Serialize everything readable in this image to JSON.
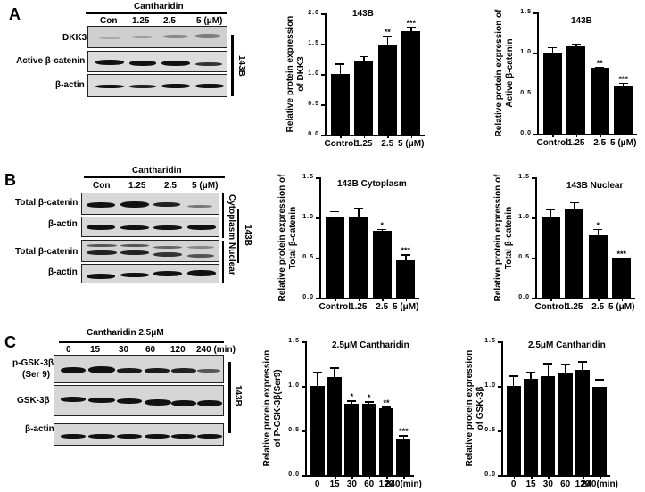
{
  "panels": {
    "A": {
      "letter": "A",
      "blot": {
        "treatment": "Cantharidin",
        "lanes": [
          "Con",
          "1.25",
          "2.5",
          "5 (μM)"
        ],
        "rows": [
          "DKK3",
          "Active  β-catenin",
          "β-actin"
        ],
        "cell_line": "143B"
      }
    },
    "B": {
      "letter": "B",
      "blot": {
        "treatment": "Cantharidin",
        "lanes": [
          "Con",
          "1.25",
          "2.5",
          "5 (μM)"
        ],
        "rows": [
          "Total  β-catenin",
          "β-actin",
          "Total  β-catenin",
          "β-actin"
        ],
        "fractions": [
          "Cytoplasm",
          "Nuclear"
        ],
        "cell_line": "143B"
      }
    },
    "C": {
      "letter": "C",
      "blot": {
        "treatment": "Cantharidin  2.5μM",
        "lanes": [
          "0",
          "15",
          "30",
          "60",
          "120",
          "240 (min)"
        ],
        "rows": [
          "p-GSK-3β\n(Ser 9)",
          "GSK-3β",
          "β-actin"
        ],
        "row_line1": "p-GSK-3β",
        "row_line2": "(Ser 9)",
        "cell_line": "143B"
      }
    }
  },
  "chart_data": [
    {
      "id": "A-DKK3",
      "type": "bar",
      "title": "143B",
      "ylabel": "Relative protein expression\nof DKK3",
      "ylabel_line1": "Relative protein expression",
      "ylabel_line2": "of DKK3",
      "xlabel": "",
      "categories": [
        "Control",
        "1.25",
        "2.5",
        "5 (μM)"
      ],
      "values": [
        1.0,
        1.2,
        1.48,
        1.7
      ],
      "errors": [
        0.17,
        0.1,
        0.15,
        0.08
      ],
      "significance": [
        "",
        "",
        "**",
        "***"
      ],
      "ylim": [
        0,
        2.0
      ],
      "yticks": [
        "0.0",
        "0.5",
        "1.0",
        "1.5",
        "2.0"
      ]
    },
    {
      "id": "A-Active-b-catenin",
      "type": "bar",
      "title": "143B",
      "ylabel_line1": "Relative protein expression of",
      "ylabel_line2": "Active β-catenin",
      "categories": [
        "Control",
        "1.25",
        "2.5",
        "5 (μM)"
      ],
      "values": [
        1.0,
        1.08,
        0.82,
        0.6
      ],
      "errors": [
        0.07,
        0.03,
        0.01,
        0.03
      ],
      "significance": [
        "",
        "",
        "**",
        "***"
      ],
      "ylim": [
        0,
        1.5
      ],
      "yticks": [
        "0.0",
        "0.5",
        "1.0",
        "1.5"
      ]
    },
    {
      "id": "B-Cytoplasm",
      "type": "bar",
      "title": "143B Cytoplasm",
      "ylabel_line1": "Relative protein expression of",
      "ylabel_line2": "Total β-catenin",
      "categories": [
        "Control",
        "1.25",
        "2.5",
        "5 (μM)"
      ],
      "values": [
        1.0,
        1.01,
        0.83,
        0.47
      ],
      "errors": [
        0.08,
        0.11,
        0.03,
        0.07
      ],
      "significance": [
        "",
        "",
        "*",
        "***"
      ],
      "ylim": [
        0,
        1.5
      ],
      "yticks": [
        "0.0",
        "0.5",
        "1.0",
        "1.5"
      ]
    },
    {
      "id": "B-Nuclear",
      "type": "bar",
      "title": "143B Nuclear",
      "ylabel_line1": "Relative protein expression of",
      "ylabel_line2": "Total β-catenin",
      "categories": [
        "Control",
        "1.25",
        "2.5",
        "5 (μM)"
      ],
      "values": [
        1.0,
        1.11,
        0.78,
        0.49
      ],
      "errors": [
        0.11,
        0.08,
        0.08,
        0.01
      ],
      "significance": [
        "",
        "",
        "*",
        "***"
      ],
      "ylim": [
        0,
        1.5
      ],
      "yticks": [
        "0.0",
        "0.5",
        "1.0",
        "1.5"
      ]
    },
    {
      "id": "C-pGSK3b",
      "type": "bar",
      "title": "2.5μM Cantharidin",
      "ylabel_line1": "Relative protein expression",
      "ylabel_line2": "of P-GSK-3β(Ser9)",
      "categories": [
        "0",
        "15",
        "30",
        "60",
        "120",
        "240(min)"
      ],
      "values": [
        1.0,
        1.1,
        0.8,
        0.8,
        0.75,
        0.41
      ],
      "errors": [
        0.16,
        0.11,
        0.04,
        0.03,
        0.02,
        0.04
      ],
      "significance": [
        "",
        "",
        "*",
        "*",
        "**",
        "***"
      ],
      "ylim": [
        0,
        1.5
      ],
      "yticks": [
        "0.0",
        "0.5",
        "1.0",
        "1.5"
      ]
    },
    {
      "id": "C-GSK3b",
      "type": "bar",
      "title": "2.5μM Cantharidin",
      "ylabel_line1": "Relative protein expression",
      "ylabel_line2": "of GSK-3β",
      "categories": [
        "0",
        "15",
        "30",
        "60",
        "120",
        "240(min)"
      ],
      "values": [
        1.0,
        1.08,
        1.11,
        1.14,
        1.18,
        0.99
      ],
      "errors": [
        0.12,
        0.08,
        0.15,
        0.11,
        0.1,
        0.09
      ],
      "significance": [
        "",
        "",
        "",
        "",
        "",
        ""
      ],
      "ylim": [
        0,
        1.5
      ],
      "yticks": [
        "0.0",
        "0.5",
        "1.0",
        "1.5"
      ]
    }
  ]
}
